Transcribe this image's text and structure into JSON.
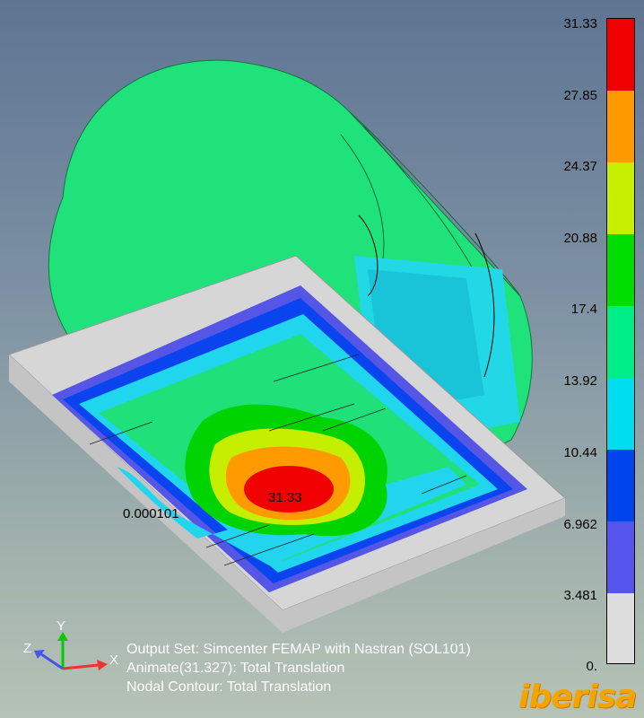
{
  "viewport": {
    "background_top": "#5e7592",
    "background_bottom": "#b6c2b6"
  },
  "legend": {
    "labels": [
      "31.33",
      "27.85",
      "24.37",
      "20.88",
      "17.4",
      "13.92",
      "10.44",
      "6.962",
      "3.481",
      "0."
    ],
    "colors": [
      "#f00000",
      "#ff9900",
      "#c8ee00",
      "#00dd00",
      "#00ee88",
      "#00ddee",
      "#0044ee",
      "#5555ee",
      "#dddddd"
    ]
  },
  "model": {
    "max_label": "31.33",
    "min_label": "0.000101"
  },
  "triad": {
    "x": "X",
    "y": "Y",
    "z": "Z"
  },
  "info": {
    "line1": "Output Set: Simcenter FEMAP with Nastran (SOL101)",
    "line2": "Animate(31.327): Total Translation",
    "line3": "Nodal Contour: Total Translation"
  },
  "logo": {
    "text": "iberisa",
    "color": "#f2a400"
  }
}
